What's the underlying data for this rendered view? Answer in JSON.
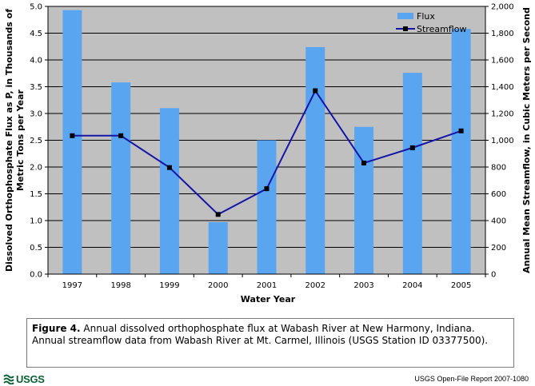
{
  "chart_data": {
    "type": "bar",
    "title": "",
    "xlabel": "Water Year",
    "ylabel": "Dissolved Orthophosphate Flux as P, in Thousands of Metric Tons per Year",
    "ylabel_line1": "Dissolved Orthophosphate Flux as P, in Thousands of",
    "ylabel_line2": "Metric Tons per Year",
    "y2label": "Annual Mean Streamflow, in Cubic Meters per Second",
    "ylim": [
      0,
      5.0
    ],
    "y2lim": [
      0,
      2000
    ],
    "yticks": [
      "0.0",
      "0.5",
      "1.0",
      "1.5",
      "2.0",
      "2.5",
      "3.0",
      "3.5",
      "4.0",
      "4.5",
      "5.0"
    ],
    "y2ticks": [
      "0",
      "200",
      "400",
      "600",
      "800",
      "1,000",
      "1,200",
      "1,400",
      "1,600",
      "1,800",
      "2,000"
    ],
    "categories": [
      "1997",
      "1998",
      "1999",
      "2000",
      "2001",
      "2002",
      "2003",
      "2004",
      "2005"
    ],
    "grid": true,
    "legend_position": "top-right",
    "series": [
      {
        "name": "Flux",
        "kind": "bar",
        "axis": "left",
        "color": "#5aa5f0",
        "values": [
          4.93,
          3.58,
          3.1,
          0.97,
          2.5,
          4.24,
          2.75,
          3.76,
          4.58
        ]
      },
      {
        "name": "Streamflow",
        "kind": "line",
        "axis": "right",
        "color": "#1515a8",
        "values": [
          1034,
          1034,
          796,
          446,
          638,
          1370,
          830,
          944,
          1070
        ]
      }
    ]
  },
  "caption": {
    "label": "Figure 4.",
    "text": " Annual dissolved orthophosphate flux at Wabash River at New Harmony, Indiana. Annual streamflow data from Wabash River at Mt. Carmel, Illinois (USGS Station ID 03377500)."
  },
  "footer": {
    "logo_text": "USGS",
    "report": "USGS Open-File Report 2007-1080"
  },
  "colors": {
    "plot_background": "#c0c0c0",
    "bar": "#5aa5f0",
    "line": "#1515a8",
    "usgs_green": "#0b5f35"
  }
}
